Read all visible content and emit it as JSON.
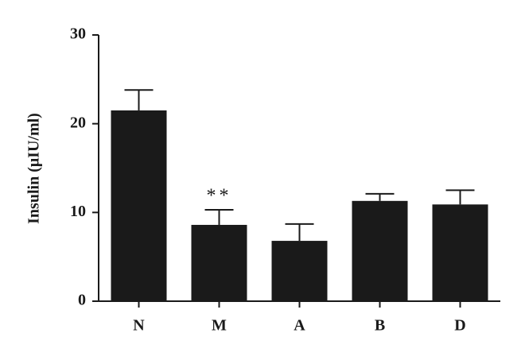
{
  "chart_data": {
    "type": "bar",
    "ylabel": "Insulin (μIU/ml)",
    "categories": [
      "N",
      "M",
      "A",
      "B",
      "D"
    ],
    "values": [
      21.5,
      8.6,
      6.8,
      11.3,
      10.9
    ],
    "errors": [
      2.3,
      1.7,
      1.9,
      0.8,
      1.6
    ],
    "color": "#1a1a1a",
    "ylim": [
      0,
      30
    ],
    "yticks": [
      0,
      10,
      20,
      30
    ],
    "grid": false,
    "annotations": [
      {
        "text": "**",
        "category": "M"
      }
    ]
  }
}
